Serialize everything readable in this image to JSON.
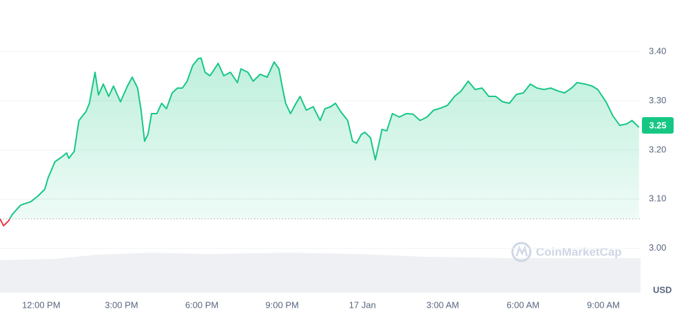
{
  "chart_data": {
    "type": "line",
    "x": [
      -1.54,
      -1.41,
      -1.23,
      -1.08,
      -0.77,
      -0.39,
      -0.13,
      0.13,
      0.26,
      0.51,
      0.77,
      0.95,
      1.03,
      1.23,
      1.41,
      1.67,
      1.8,
      2.01,
      2.14,
      2.32,
      2.52,
      2.7,
      2.96,
      3.22,
      3.4,
      3.6,
      3.73,
      3.86,
      3.99,
      4.12,
      4.32,
      4.5,
      4.68,
      4.89,
      5.09,
      5.27,
      5.45,
      5.66,
      5.87,
      5.97,
      6.12,
      6.3,
      6.43,
      6.61,
      6.82,
      7.07,
      7.33,
      7.46,
      7.72,
      7.92,
      8.18,
      8.44,
      8.7,
      8.88,
      9.0,
      9.13,
      9.31,
      9.52,
      9.67,
      9.9,
      10.16,
      10.42,
      10.6,
      10.81,
      10.99,
      11.19,
      11.45,
      11.63,
      11.78,
      11.96,
      12.09,
      12.3,
      12.48,
      12.61,
      12.73,
      12.91,
      13.12,
      13.38,
      13.64,
      13.89,
      14.15,
      14.41,
      14.66,
      14.92,
      15.18,
      15.44,
      15.69,
      15.95,
      16.21,
      16.47,
      16.72,
      16.98,
      17.24,
      17.49,
      17.75,
      18.01,
      18.27,
      18.52,
      18.78,
      19.04,
      19.3,
      19.55,
      19.81,
      20.02,
      20.32,
      20.58,
      20.79,
      21.1,
      21.35,
      21.61,
      21.87,
      22.07,
      22.33
    ],
    "series": [
      {
        "name": "Price",
        "color": "#16c784",
        "down_color": "#ea3943",
        "values": [
          3.06,
          3.046,
          3.055,
          3.069,
          3.088,
          3.095,
          3.106,
          3.12,
          3.144,
          3.176,
          3.186,
          3.194,
          3.183,
          3.197,
          3.26,
          3.278,
          3.295,
          3.358,
          3.312,
          3.334,
          3.309,
          3.33,
          3.298,
          3.33,
          3.348,
          3.326,
          3.281,
          3.218,
          3.232,
          3.274,
          3.274,
          3.295,
          3.284,
          3.316,
          3.326,
          3.326,
          3.34,
          3.372,
          3.386,
          3.387,
          3.358,
          3.351,
          3.361,
          3.376,
          3.351,
          3.358,
          3.337,
          3.365,
          3.358,
          3.34,
          3.354,
          3.348,
          3.379,
          3.365,
          3.33,
          3.295,
          3.274,
          3.295,
          3.309,
          3.281,
          3.288,
          3.26,
          3.284,
          3.288,
          3.295,
          3.278,
          3.26,
          3.218,
          3.214,
          3.232,
          3.236,
          3.225,
          3.18,
          3.211,
          3.242,
          3.239,
          3.274,
          3.267,
          3.274,
          3.273,
          3.26,
          3.267,
          3.281,
          3.285,
          3.291,
          3.309,
          3.32,
          3.34,
          3.323,
          3.326,
          3.309,
          3.309,
          3.298,
          3.295,
          3.313,
          3.316,
          3.334,
          3.326,
          3.323,
          3.326,
          3.32,
          3.316,
          3.326,
          3.337,
          3.334,
          3.33,
          3.323,
          3.298,
          3.27,
          3.25,
          3.253,
          3.26,
          3.246
        ]
      }
    ],
    "reference": 3.06,
    "current_price": 3.25,
    "xlim": [
      -1.54,
      22.39
    ],
    "xticks": [
      {
        "value": 0,
        "label": "12:00 PM"
      },
      {
        "value": 3,
        "label": "3:00 PM"
      },
      {
        "value": 6,
        "label": "6:00 PM"
      },
      {
        "value": 9,
        "label": "9:00 PM"
      },
      {
        "value": 12,
        "label": "17 Jan"
      },
      {
        "value": 15,
        "label": "3:00 AM"
      },
      {
        "value": 18,
        "label": "6:00 AM"
      },
      {
        "value": 21,
        "label": "9:00 AM"
      }
    ],
    "ylim": [
      2.91,
      3.505
    ],
    "yticks": [
      {
        "value": 3.0,
        "label": "3.00"
      },
      {
        "value": 3.1,
        "label": "3.10"
      },
      {
        "value": 3.2,
        "label": "3.20"
      },
      {
        "value": 3.3,
        "label": "3.30"
      },
      {
        "value": 3.4,
        "label": "3.40"
      }
    ],
    "y_axis_label": "USD",
    "watermark": "CoinMarketCap",
    "grid": true
  }
}
